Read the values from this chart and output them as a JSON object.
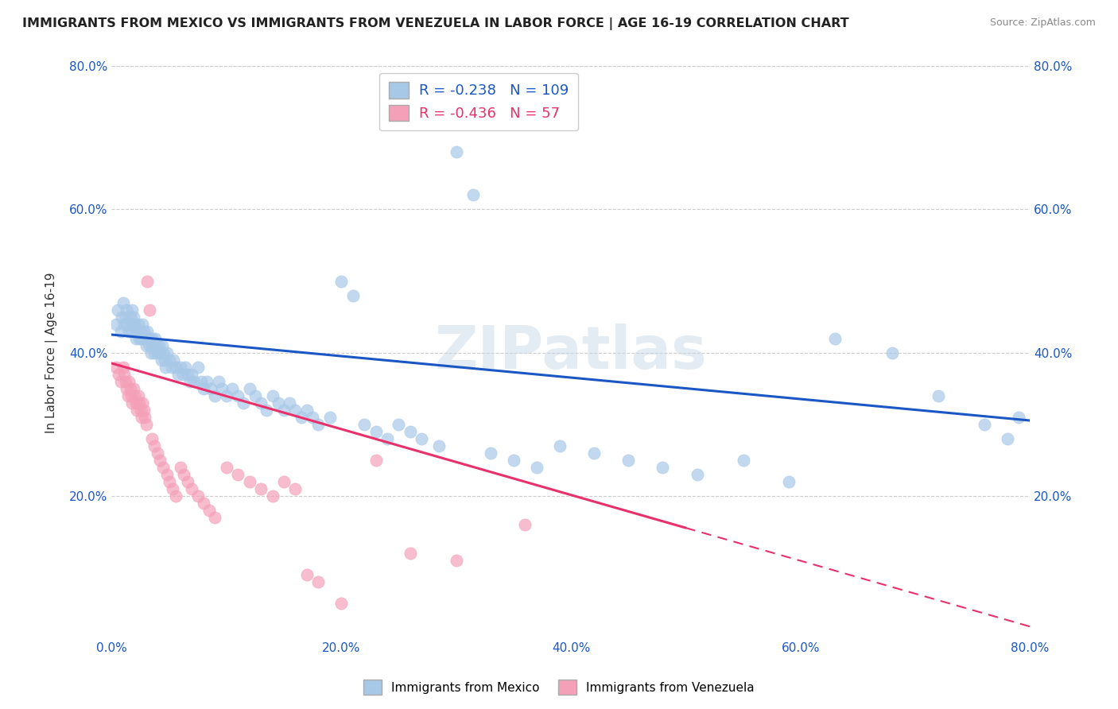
{
  "title": "IMMIGRANTS FROM MEXICO VS IMMIGRANTS FROM VENEZUELA IN LABOR FORCE | AGE 16-19 CORRELATION CHART",
  "source": "Source: ZipAtlas.com",
  "ylabel": "In Labor Force | Age 16-19",
  "xlim": [
    0.0,
    0.8
  ],
  "ylim": [
    0.0,
    0.8
  ],
  "xtick_labels": [
    "0.0%",
    "20.0%",
    "40.0%",
    "60.0%",
    "80.0%"
  ],
  "xtick_vals": [
    0.0,
    0.2,
    0.4,
    0.6,
    0.8
  ],
  "ytick_labels": [
    "20.0%",
    "40.0%",
    "60.0%",
    "80.0%"
  ],
  "ytick_vals": [
    0.2,
    0.4,
    0.6,
    0.8
  ],
  "mexico_color": "#A8C8E8",
  "venezuela_color": "#F4A0B8",
  "mexico_R": -0.238,
  "mexico_N": 109,
  "venezuela_R": -0.436,
  "venezuela_N": 57,
  "trend_mexico_color": "#1A56C4",
  "trend_venezuela_color": "#E8306A",
  "watermark": "ZIPatlas",
  "legend_labels": [
    "Immigrants from Mexico",
    "Immigrants from Venezuela"
  ],
  "mexico_scatter_x": [
    0.004,
    0.005,
    0.008,
    0.009,
    0.01,
    0.011,
    0.012,
    0.013,
    0.013,
    0.015,
    0.016,
    0.017,
    0.018,
    0.018,
    0.019,
    0.02,
    0.021,
    0.022,
    0.023,
    0.024,
    0.025,
    0.026,
    0.027,
    0.028,
    0.029,
    0.03,
    0.031,
    0.032,
    0.033,
    0.034,
    0.035,
    0.036,
    0.037,
    0.038,
    0.039,
    0.04,
    0.041,
    0.042,
    0.043,
    0.044,
    0.045,
    0.046,
    0.047,
    0.048,
    0.05,
    0.052,
    0.054,
    0.056,
    0.058,
    0.06,
    0.062,
    0.064,
    0.066,
    0.068,
    0.07,
    0.072,
    0.075,
    0.078,
    0.08,
    0.083,
    0.086,
    0.09,
    0.093,
    0.096,
    0.1,
    0.105,
    0.11,
    0.115,
    0.12,
    0.125,
    0.13,
    0.135,
    0.14,
    0.145,
    0.15,
    0.155,
    0.16,
    0.165,
    0.17,
    0.175,
    0.18,
    0.19,
    0.2,
    0.21,
    0.22,
    0.23,
    0.24,
    0.25,
    0.26,
    0.27,
    0.285,
    0.3,
    0.315,
    0.33,
    0.35,
    0.37,
    0.39,
    0.42,
    0.45,
    0.48,
    0.51,
    0.55,
    0.59,
    0.63,
    0.68,
    0.72,
    0.76,
    0.78,
    0.79
  ],
  "mexico_scatter_y": [
    0.44,
    0.46,
    0.43,
    0.45,
    0.47,
    0.44,
    0.45,
    0.44,
    0.46,
    0.43,
    0.45,
    0.44,
    0.46,
    0.43,
    0.45,
    0.44,
    0.42,
    0.43,
    0.44,
    0.42,
    0.43,
    0.42,
    0.44,
    0.43,
    0.42,
    0.41,
    0.43,
    0.42,
    0.41,
    0.4,
    0.42,
    0.41,
    0.4,
    0.42,
    0.41,
    0.4,
    0.41,
    0.4,
    0.39,
    0.41,
    0.4,
    0.39,
    0.38,
    0.4,
    0.39,
    0.38,
    0.39,
    0.38,
    0.37,
    0.38,
    0.37,
    0.38,
    0.37,
    0.36,
    0.37,
    0.36,
    0.38,
    0.36,
    0.35,
    0.36,
    0.35,
    0.34,
    0.36,
    0.35,
    0.34,
    0.35,
    0.34,
    0.33,
    0.35,
    0.34,
    0.33,
    0.32,
    0.34,
    0.33,
    0.32,
    0.33,
    0.32,
    0.31,
    0.32,
    0.31,
    0.3,
    0.31,
    0.5,
    0.48,
    0.3,
    0.29,
    0.28,
    0.3,
    0.29,
    0.28,
    0.27,
    0.68,
    0.62,
    0.26,
    0.25,
    0.24,
    0.27,
    0.26,
    0.25,
    0.24,
    0.23,
    0.25,
    0.22,
    0.42,
    0.4,
    0.34,
    0.3,
    0.28,
    0.31
  ],
  "venezuela_scatter_x": [
    0.004,
    0.006,
    0.008,
    0.01,
    0.011,
    0.012,
    0.013,
    0.014,
    0.015,
    0.016,
    0.017,
    0.018,
    0.019,
    0.02,
    0.021,
    0.022,
    0.023,
    0.024,
    0.025,
    0.026,
    0.027,
    0.028,
    0.029,
    0.03,
    0.031,
    0.033,
    0.035,
    0.037,
    0.04,
    0.042,
    0.045,
    0.048,
    0.05,
    0.053,
    0.056,
    0.06,
    0.063,
    0.066,
    0.07,
    0.075,
    0.08,
    0.085,
    0.09,
    0.1,
    0.11,
    0.12,
    0.13,
    0.14,
    0.15,
    0.16,
    0.17,
    0.18,
    0.2,
    0.23,
    0.26,
    0.3,
    0.36
  ],
  "venezuela_scatter_y": [
    0.38,
    0.37,
    0.36,
    0.38,
    0.37,
    0.36,
    0.35,
    0.34,
    0.36,
    0.35,
    0.34,
    0.33,
    0.35,
    0.34,
    0.33,
    0.32,
    0.34,
    0.33,
    0.32,
    0.31,
    0.33,
    0.32,
    0.31,
    0.3,
    0.5,
    0.46,
    0.28,
    0.27,
    0.26,
    0.25,
    0.24,
    0.23,
    0.22,
    0.21,
    0.2,
    0.24,
    0.23,
    0.22,
    0.21,
    0.2,
    0.19,
    0.18,
    0.17,
    0.24,
    0.23,
    0.22,
    0.21,
    0.2,
    0.22,
    0.21,
    0.09,
    0.08,
    0.05,
    0.25,
    0.12,
    0.11,
    0.16
  ],
  "trend_mexico_x0": 0.0,
  "trend_mexico_y0": 0.425,
  "trend_mexico_x1": 0.8,
  "trend_mexico_y1": 0.305,
  "trend_ven_solid_x0": 0.0,
  "trend_ven_solid_y0": 0.385,
  "trend_ven_solid_x1": 0.5,
  "trend_ven_solid_y1": 0.155,
  "trend_ven_dash_x0": 0.5,
  "trend_ven_dash_y0": 0.155,
  "trend_ven_dash_x1": 0.8,
  "trend_ven_dash_y1": 0.017
}
